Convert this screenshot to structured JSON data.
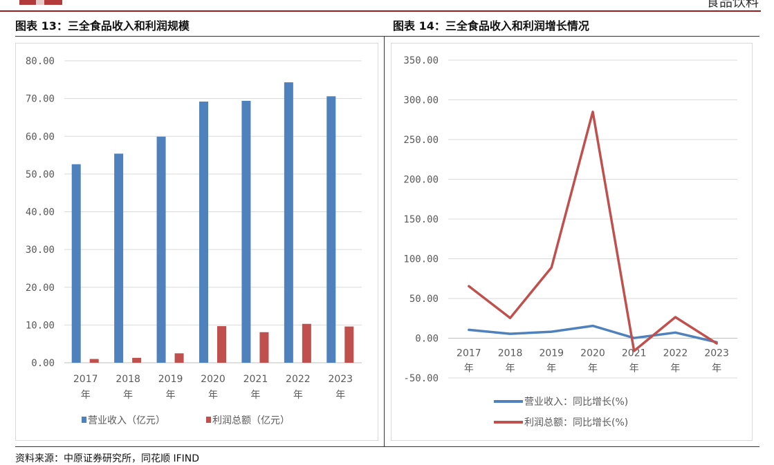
{
  "header": {
    "section_title": "食品饮料",
    "left_figure_title": "图表 13：三全食品收入和利润规模",
    "right_figure_title": "图表 14：三全食品收入和利润增长情况",
    "source": "资料来源：中原证券研究所，同花顺 IFIND"
  },
  "colors": {
    "blue": "#4f81bd",
    "red": "#c0504d",
    "grid": "#d9d9d9",
    "brand": "#9b1c1c"
  },
  "chart_data": [
    {
      "type": "bar",
      "title": "",
      "categories": [
        "2017|年",
        "2018|年",
        "2019|年",
        "2020|年",
        "2021|年",
        "2022|年",
        "2023|年"
      ],
      "series": [
        {
          "name": "营业收入（亿元）",
          "values": [
            52.6,
            55.4,
            59.9,
            69.2,
            69.4,
            74.3,
            70.6
          ]
        },
        {
          "name": "利润总额（亿元）",
          "values": [
            1.0,
            1.3,
            2.5,
            9.7,
            8.1,
            10.3,
            9.6
          ]
        }
      ],
      "ylim": [
        0,
        80
      ],
      "yticks": [
        "0.00",
        "10.00",
        "20.00",
        "30.00",
        "40.00",
        "50.00",
        "60.00",
        "70.00",
        "80.00"
      ],
      "grid": true,
      "legend": "bottom"
    },
    {
      "type": "line",
      "title": "",
      "categories": [
        "2017|年",
        "2018|年",
        "2019|年",
        "2020|年",
        "2021|年",
        "2022|年",
        "2023|年"
      ],
      "series": [
        {
          "name": "营业收入：同比增长(%)",
          "values": [
            10.5,
            5.6,
            8.2,
            15.6,
            0.3,
            7.1,
            -5.0
          ]
        },
        {
          "name": "利润总额：同比增长(%)",
          "values": [
            65.5,
            25.5,
            89.0,
            285.0,
            -16.0,
            26.5,
            -6.5
          ]
        }
      ],
      "ylim": [
        -50,
        350
      ],
      "yticks": [
        "-50.00",
        "0.00",
        "50.00",
        "100.00",
        "150.00",
        "200.00",
        "250.00",
        "300.00",
        "350.00"
      ],
      "grid": true,
      "legend": "bottom"
    }
  ]
}
